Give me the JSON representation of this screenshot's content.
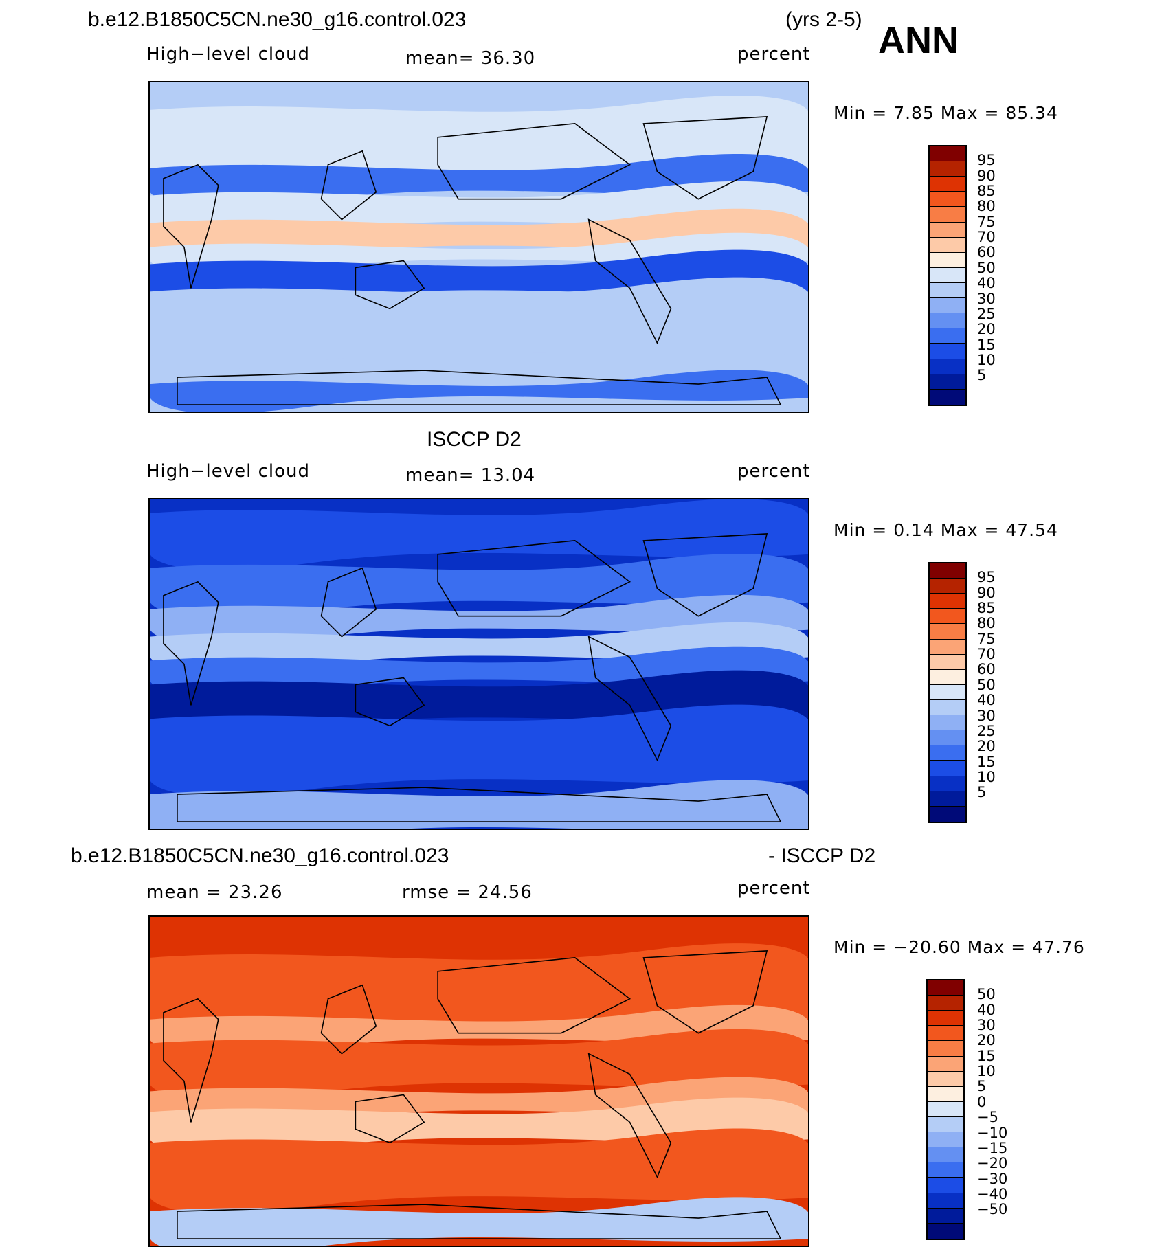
{
  "header": {
    "case_title": "b.e12.B1850C5CN.ne30_g16.control.023",
    "years": "(yrs 2-5)",
    "season": "ANN"
  },
  "panels": [
    {
      "id": "model",
      "heading": "",
      "left_label": "High−level cloud",
      "center_label": "mean=   36.30",
      "units": "percent",
      "minmax": "Min =    7.85 Max =   85.34",
      "field": "model",
      "colorbar": "abs"
    },
    {
      "id": "obs",
      "heading": "ISCCP D2",
      "left_label": "High−level cloud",
      "center_label": "mean=   13.04",
      "units": "percent",
      "minmax": "Min =    0.14 Max =   47.54",
      "field": "obs",
      "colorbar": "abs"
    },
    {
      "id": "diff",
      "heading_left": "b.e12.B1850C5CN.ne30_g16.control.023",
      "heading_right": "- ISCCP D2",
      "left_label": "mean =   23.26",
      "center_label": "rmse =   24.56",
      "units": "percent",
      "minmax": "Min = −20.60 Max =   47.76",
      "field": "diff",
      "colorbar": "diff"
    }
  ],
  "colorbars": {
    "abs": {
      "colors": [
        "#800000",
        "#b52300",
        "#de3303",
        "#f2571e",
        "#f87d45",
        "#fba476",
        "#fdcaa8",
        "#fdefe0",
        "#d8e6f8",
        "#b4cdf6",
        "#8fb0f4",
        "#6490f2",
        "#3a6ef0",
        "#1c4de6",
        "#0830c5",
        "#001b9b",
        "#000a78"
      ],
      "labels": [
        "95",
        "90",
        "85",
        "80",
        "75",
        "70",
        "60",
        "50",
        "40",
        "30",
        "25",
        "20",
        "15",
        "10",
        "5"
      ]
    },
    "diff": {
      "colors": [
        "#800000",
        "#b52300",
        "#de3303",
        "#f2571e",
        "#f87d45",
        "#fba476",
        "#fdcaa8",
        "#fdefe0",
        "#d8e6f8",
        "#b4cdf6",
        "#8fb0f4",
        "#6490f2",
        "#3a6ef0",
        "#1c4de6",
        "#0830c5",
        "#001b9b",
        "#000a78"
      ],
      "labels": [
        "50",
        "40",
        "30",
        "20",
        "15",
        "10",
        "5",
        "0",
        "−5",
        "−10",
        "−15",
        "−20",
        "−30",
        "−40",
        "−50"
      ]
    }
  }
}
